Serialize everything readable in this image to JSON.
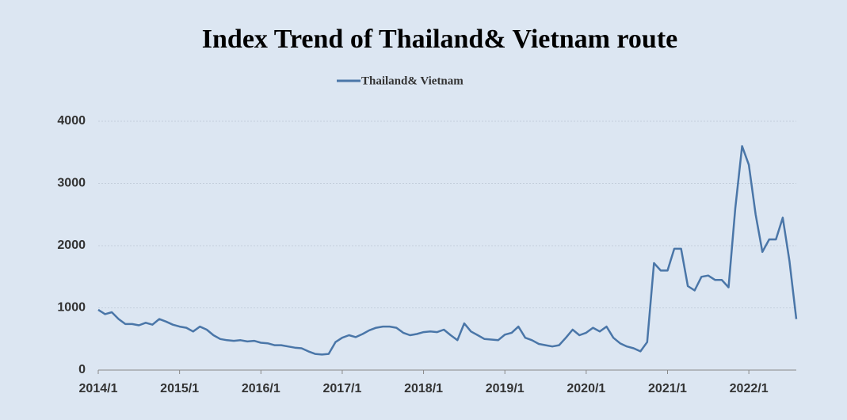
{
  "chart_data": {
    "type": "line",
    "title": "Index Trend of Thailand& Vietnam route",
    "x": [
      "2014/1",
      "2014/2",
      "2014/3",
      "2014/4",
      "2014/5",
      "2014/6",
      "2014/7",
      "2014/8",
      "2014/9",
      "2014/10",
      "2014/11",
      "2014/12",
      "2015/1",
      "2015/2",
      "2015/3",
      "2015/4",
      "2015/5",
      "2015/6",
      "2015/7",
      "2015/8",
      "2015/9",
      "2015/10",
      "2015/11",
      "2015/12",
      "2016/1",
      "2016/2",
      "2016/3",
      "2016/4",
      "2016/5",
      "2016/6",
      "2016/7",
      "2016/8",
      "2016/9",
      "2016/10",
      "2016/11",
      "2016/12",
      "2017/1",
      "2017/2",
      "2017/3",
      "2017/4",
      "2017/5",
      "2017/6",
      "2017/7",
      "2017/8",
      "2017/9",
      "2017/10",
      "2017/11",
      "2017/12",
      "2018/1",
      "2018/2",
      "2018/3",
      "2018/4",
      "2018/5",
      "2018/6",
      "2018/7",
      "2018/8",
      "2018/9",
      "2018/10",
      "2018/11",
      "2018/12",
      "2019/1",
      "2019/2",
      "2019/3",
      "2019/4",
      "2019/5",
      "2019/6",
      "2019/7",
      "2019/8",
      "2019/9",
      "2019/10",
      "2019/11",
      "2019/12",
      "2020/1",
      "2020/2",
      "2020/3",
      "2020/4",
      "2020/5",
      "2020/6",
      "2020/7",
      "2020/8",
      "2020/9",
      "2020/10",
      "2020/11",
      "2020/12",
      "2021/1",
      "2021/2",
      "2021/3",
      "2021/4",
      "2021/5",
      "2021/6",
      "2021/7",
      "2021/8",
      "2021/9",
      "2021/10",
      "2021/11",
      "2021/12",
      "2022/1",
      "2022/2",
      "2022/3",
      "2022/4",
      "2022/5",
      "2022/6",
      "2022/7",
      "2022/8"
    ],
    "series": [
      {
        "name": "Thailand& Vietnam",
        "color": "#4a76a8",
        "values": [
          970,
          900,
          930,
          820,
          740,
          740,
          720,
          760,
          730,
          820,
          780,
          730,
          700,
          680,
          620,
          700,
          650,
          560,
          500,
          480,
          470,
          480,
          460,
          470,
          440,
          430,
          400,
          400,
          380,
          360,
          350,
          300,
          260,
          250,
          260,
          450,
          520,
          560,
          530,
          580,
          640,
          680,
          700,
          700,
          680,
          600,
          560,
          580,
          610,
          620,
          610,
          650,
          560,
          480,
          750,
          620,
          560,
          500,
          490,
          480,
          570,
          600,
          700,
          520,
          480,
          420,
          400,
          380,
          400,
          520,
          650,
          560,
          600,
          680,
          620,
          700,
          520,
          430,
          380,
          350,
          300,
          450,
          1720,
          1600,
          1600,
          1950,
          1950,
          1350,
          1280,
          1500,
          1520,
          1450,
          1450,
          1330,
          2600,
          3600,
          3300,
          2500,
          1900,
          2100,
          2100,
          2450,
          1750,
          820
        ]
      }
    ],
    "xticks": [
      "2014/1",
      "2015/1",
      "2016/1",
      "2017/1",
      "2018/1",
      "2019/1",
      "2020/1",
      "2021/1",
      "2022/1"
    ],
    "ylim": [
      0,
      4000
    ],
    "yticks": [
      0,
      1000,
      2000,
      3000,
      4000
    ],
    "grid": true,
    "legend": "top"
  }
}
